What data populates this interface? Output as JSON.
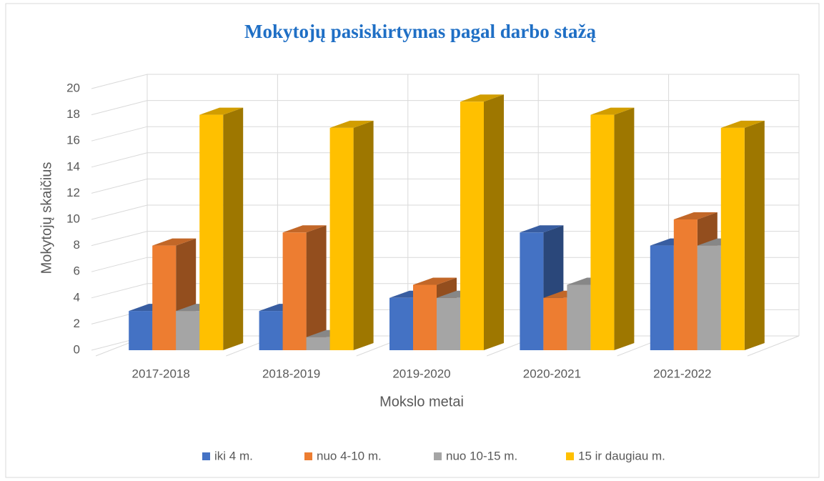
{
  "chart_data": {
    "type": "bar3d",
    "title": "Mokytojų  pasiskirtymas pagal darbo stažą",
    "x_label": "Mokslo metai",
    "y_label": "Mokytojų skaičius",
    "categories": [
      "2017-2018",
      "2018-2019",
      "2019-2020",
      "2020-2021",
      "2021-2022"
    ],
    "series": [
      {
        "name": "iki 4 m.",
        "color": "#4472c4",
        "values": [
          3,
          3,
          4,
          9,
          8
        ]
      },
      {
        "name": "nuo 4-10 m.",
        "color": "#ed7d31",
        "values": [
          8,
          9,
          5,
          4,
          10
        ]
      },
      {
        "name": "nuo 10-15 m.",
        "color": "#a5a5a5",
        "values": [
          3,
          1,
          4,
          5,
          8
        ]
      },
      {
        "name": "15 ir daugiau m.",
        "color": "#ffc000",
        "values": [
          18,
          17,
          19,
          18,
          17
        ]
      }
    ],
    "ylim": [
      0,
      20
    ],
    "yticks": [
      0,
      2,
      4,
      6,
      8,
      10,
      12,
      14,
      16,
      18,
      20
    ],
    "grid": true,
    "legend": "bottom"
  }
}
